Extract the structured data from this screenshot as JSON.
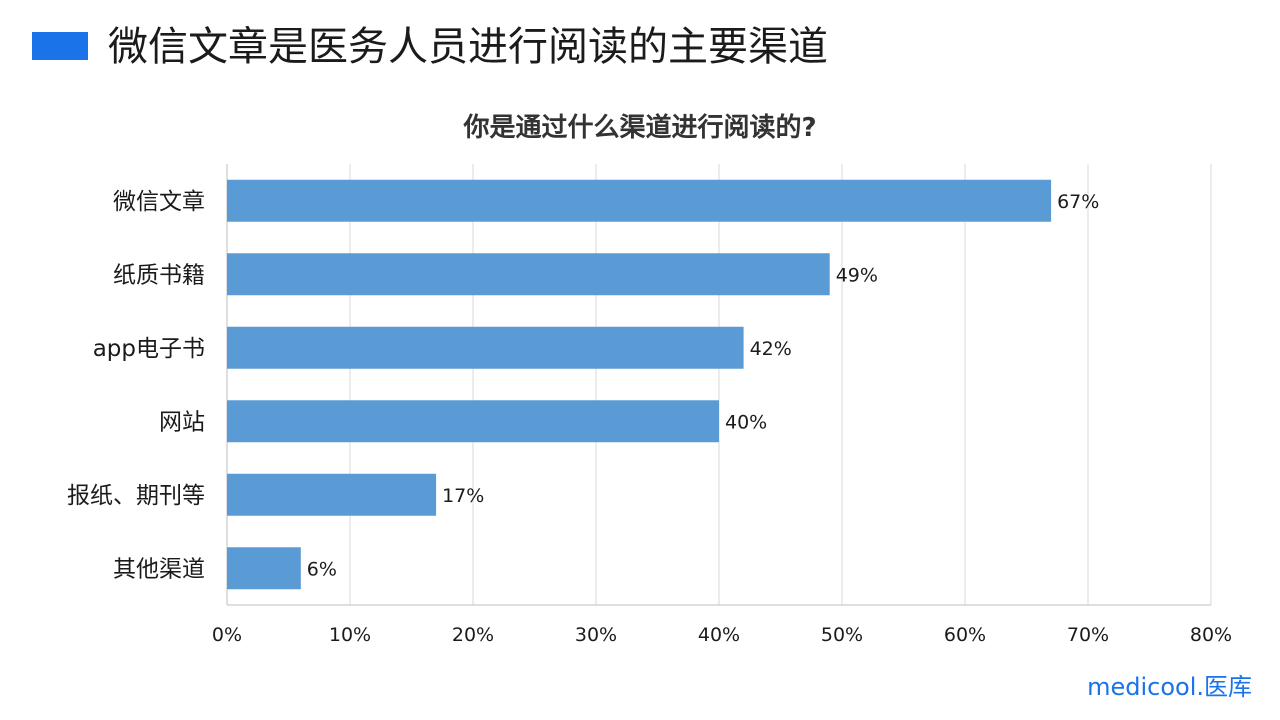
{
  "slide": {
    "title": "微信文章是医务人员进行阅读的主要渠道",
    "accent_color": "#1a73e8"
  },
  "brand": {
    "text": "medicool.医库"
  },
  "chart_data": {
    "type": "bar",
    "orientation": "horizontal",
    "title": "你是通过什么渠道进行阅读的?",
    "categories": [
      "微信文章",
      "纸质书籍",
      "app电子书",
      "网站",
      "报纸、期刊等",
      "其他渠道"
    ],
    "values": [
      67,
      49,
      42,
      40,
      17,
      6
    ],
    "data_labels": [
      "67%",
      "49%",
      "42%",
      "40%",
      "17%",
      "6%"
    ],
    "xlim": [
      0,
      80
    ],
    "x_ticks": [
      "0%",
      "10%",
      "20%",
      "30%",
      "40%",
      "50%",
      "60%",
      "70%",
      "80%"
    ],
    "grid": true,
    "bar_color": "#5b9bd5",
    "grid_color": "#d9d9d9"
  }
}
